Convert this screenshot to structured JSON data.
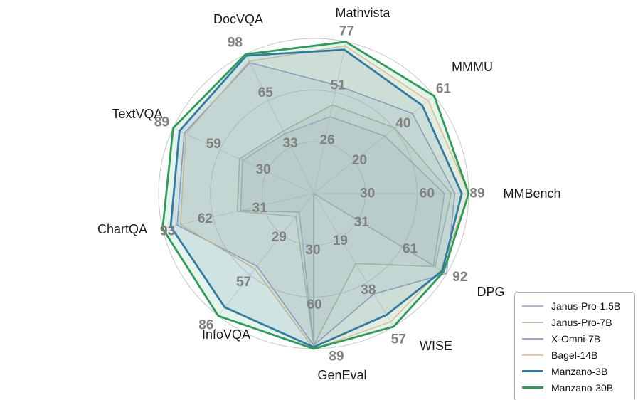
{
  "figure": {
    "kind": "radar benchmark comparison figure",
    "background": "#ffffff"
  },
  "chart_data": {
    "type": "radar",
    "title": "",
    "categories": [
      "Mathvista",
      "MMMU",
      "MMBench",
      "DPG",
      "WISE",
      "GenEval",
      "InfoVQA",
      "ChartQA",
      "TextVQA",
      "DocVQA"
    ],
    "axis_max": [
      77,
      61,
      89,
      92,
      57,
      89,
      86,
      93,
      89,
      98
    ],
    "ring_labels": {
      "outer": [
        "77",
        "61",
        "89",
        "92",
        "57",
        "89",
        "86",
        "93",
        "89",
        "98"
      ],
      "middle": [
        "51",
        "40",
        "60",
        "61",
        "38",
        "60",
        "57",
        "62",
        "59",
        "65"
      ],
      "inner": [
        "26",
        "20",
        "30",
        "31",
        "19",
        "30",
        "29",
        "31",
        "30",
        "33"
      ]
    },
    "grid": {
      "rings": 3,
      "ring_color": "#d2d2d2",
      "outer_ring_color": "#c6c6c6",
      "spoke_color": "#d8d8d8",
      "gridlines_on": true
    },
    "series": [
      {
        "name": "Janus-Pro-1.5B",
        "color": "#a9b8d8",
        "line_width": 1.6,
        "fill_opacity": 0.13,
        "values": [
          39,
          36,
          75,
          83,
          0,
          86,
          13,
          45,
          45,
          42
        ]
      },
      {
        "name": "Janus-Pro-7B",
        "color": "#afc9a8",
        "line_width": 1.6,
        "fill_opacity": 0.13,
        "values": [
          45,
          41,
          79,
          84,
          30,
          87,
          16,
          47,
          47,
          44
        ]
      },
      {
        "name": "X-Omni-7B",
        "color": "#a49fd5",
        "line_width": 1.6,
        "fill_opacity": 0.13,
        "values": [
          55,
          50,
          81,
          92,
          43,
          87,
          51,
          84,
          82,
          92
        ]
      },
      {
        "name": "Bagel-14B",
        "color": "#edc79c",
        "line_width": 1.6,
        "fill_opacity": 0.13,
        "values": [
          75,
          58,
          89,
          88,
          55,
          89,
          53,
          82,
          81,
          93
        ]
      },
      {
        "name": "Manzano-3B",
        "color": "#3377b0",
        "line_width": 2.8,
        "fill_opacity": 0.12,
        "values": [
          73,
          55,
          85,
          89,
          52,
          88,
          80,
          88,
          85,
          97
        ]
      },
      {
        "name": "Manzano-30B",
        "color": "#2d9c58",
        "line_width": 2.8,
        "fill_opacity": 0.12,
        "values": [
          77,
          61,
          89,
          90,
          57,
          89,
          86,
          93,
          89,
          98
        ]
      }
    ],
    "legend": {
      "position": "lower right",
      "entries": [
        "Janus-Pro-1.5B",
        "Janus-Pro-7B",
        "X-Omni-7B",
        "Bagel-14B",
        "Manzano-3B",
        "Manzano-30B"
      ]
    },
    "ring_number_color": "#808080",
    "axis_label_color": "#1c1c1c"
  }
}
